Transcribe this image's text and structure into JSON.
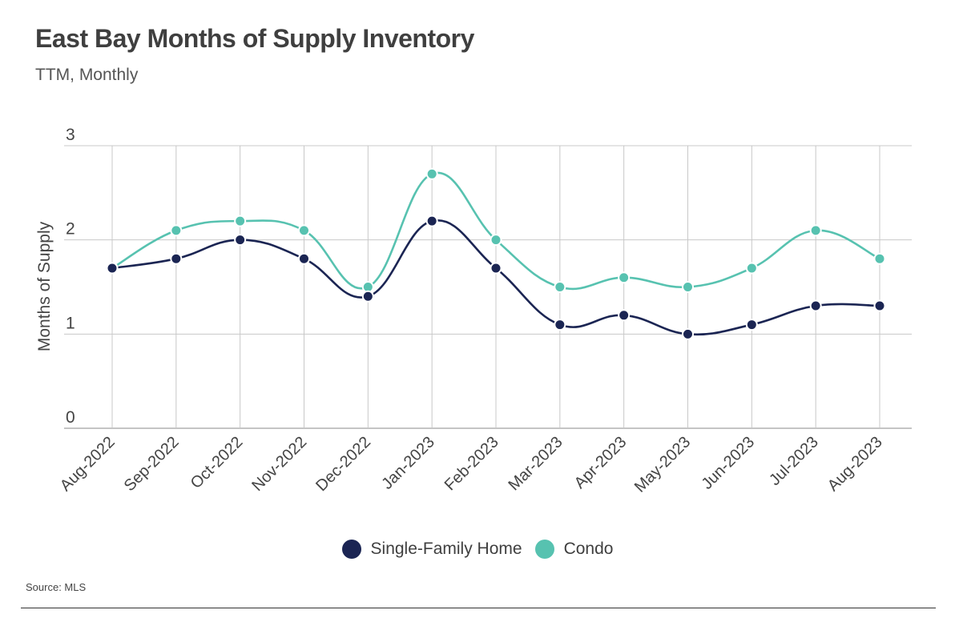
{
  "header": {
    "title": "East Bay Months of Supply Inventory",
    "subtitle": "TTM, Monthly"
  },
  "source": "Source:  MLS",
  "colors": {
    "single_family": "#1b2553",
    "condo": "#57c2b0",
    "grid": "#c8c8c8",
    "axis_text": "#444444"
  },
  "chart_data": {
    "type": "line",
    "title": "East Bay Months of Supply Inventory",
    "subtitle": "TTM, Monthly",
    "xlabel": "",
    "ylabel": "Months of Supply",
    "ylim": [
      0,
      3
    ],
    "yticks": [
      0,
      1,
      2,
      3
    ],
    "grid": true,
    "smooth": true,
    "legend_position": "bottom-center",
    "categories": [
      "Aug-2022",
      "Sep-2022",
      "Oct-2022",
      "Nov-2022",
      "Dec-2022",
      "Jan-2023",
      "Feb-2023",
      "Mar-2023",
      "Apr-2023",
      "May-2023",
      "Jun-2023",
      "Jul-2023",
      "Aug-2023"
    ],
    "series": [
      {
        "name": "Single-Family Home",
        "color": "#1b2553",
        "values": [
          1.7,
          1.8,
          2.0,
          1.8,
          1.4,
          2.2,
          1.7,
          1.1,
          1.2,
          1.0,
          1.1,
          1.3,
          1.3
        ]
      },
      {
        "name": "Condo",
        "color": "#57c2b0",
        "values": [
          1.7,
          2.1,
          2.2,
          2.1,
          1.5,
          2.7,
          2.0,
          1.5,
          1.6,
          1.5,
          1.7,
          2.1,
          1.8
        ]
      }
    ]
  }
}
